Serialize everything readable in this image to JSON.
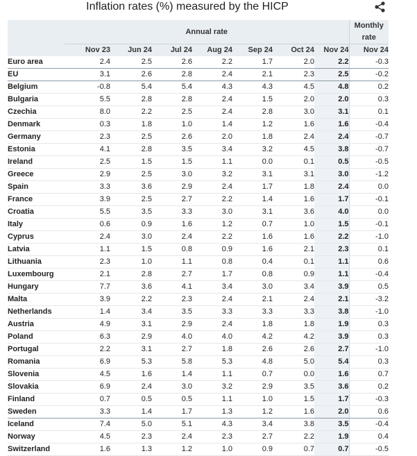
{
  "title": "Inflation rates (%) measured by the HICP",
  "share_icon": "share-icon",
  "group_headers": {
    "annual": "Annual rate",
    "monthly": "Monthly rate"
  },
  "columns": [
    "Nov 23",
    "Jun 24",
    "Jul 24",
    "Aug 24",
    "Sep 24",
    "Oct 24",
    "Nov 24",
    "Nov 24"
  ],
  "rows": [
    {
      "country": "Euro area",
      "values": [
        "2.4",
        "2.5",
        "2.6",
        "2.2",
        "1.7",
        "2.0",
        "2.2",
        "-0.3"
      ],
      "sep": true
    },
    {
      "country": "EU",
      "values": [
        "3.1",
        "2.6",
        "2.8",
        "2.4",
        "2.1",
        "2.3",
        "2.5",
        "-0.2"
      ],
      "sep": true
    },
    {
      "country": "Belgium",
      "values": [
        "-0.8",
        "5.4",
        "5.4",
        "4.3",
        "4.3",
        "4.5",
        "4.8",
        "0.2"
      ]
    },
    {
      "country": "Bulgaria",
      "values": [
        "5.5",
        "2.8",
        "2.8",
        "2.4",
        "1.5",
        "2.0",
        "2.0",
        "0.3"
      ]
    },
    {
      "country": "Czechia",
      "values": [
        "8.0",
        "2.2",
        "2.5",
        "2.4",
        "2.8",
        "3.0",
        "3.1",
        "0.1"
      ]
    },
    {
      "country": "Denmark",
      "values": [
        "0.3",
        "1.8",
        "1.0",
        "1.4",
        "1.2",
        "1.6",
        "1.6",
        "-0.4"
      ]
    },
    {
      "country": "Germany",
      "values": [
        "2.3",
        "2.5",
        "2.6",
        "2.0",
        "1.8",
        "2.4",
        "2.4",
        "-0.7"
      ]
    },
    {
      "country": "Estonia",
      "values": [
        "4.1",
        "2.8",
        "3.5",
        "3.4",
        "3.2",
        "4.5",
        "3.8",
        "-0.7"
      ]
    },
    {
      "country": "Ireland",
      "values": [
        "2.5",
        "1.5",
        "1.5",
        "1.1",
        "0.0",
        "0.1",
        "0.5",
        "-0.5"
      ]
    },
    {
      "country": "Greece",
      "values": [
        "2.9",
        "2.5",
        "3.0",
        "3.2",
        "3.1",
        "3.1",
        "3.0",
        "-1.2"
      ]
    },
    {
      "country": "Spain",
      "values": [
        "3.3",
        "3.6",
        "2.9",
        "2.4",
        "1.7",
        "1.8",
        "2.4",
        "0.0"
      ]
    },
    {
      "country": "France",
      "values": [
        "3.9",
        "2.5",
        "2.7",
        "2.2",
        "1.4",
        "1.6",
        "1.7",
        "-0.1"
      ]
    },
    {
      "country": "Croatia",
      "values": [
        "5.5",
        "3.5",
        "3.3",
        "3.0",
        "3.1",
        "3.6",
        "4.0",
        "0.0"
      ]
    },
    {
      "country": "Italy",
      "values": [
        "0.6",
        "0.9",
        "1.6",
        "1.2",
        "0.7",
        "1.0",
        "1.5",
        "-0.1"
      ]
    },
    {
      "country": "Cyprus",
      "values": [
        "2.4",
        "3.0",
        "2.4",
        "2.2",
        "1.6",
        "1.6",
        "2.2",
        "-1.0"
      ]
    },
    {
      "country": "Latvia",
      "values": [
        "1.1",
        "1.5",
        "0.8",
        "0.9",
        "1.6",
        "2.1",
        "2.3",
        "0.1"
      ]
    },
    {
      "country": "Lithuania",
      "values": [
        "2.3",
        "1.0",
        "1.1",
        "0.8",
        "0.4",
        "0.1",
        "1.1",
        "0.6"
      ]
    },
    {
      "country": "Luxembourg",
      "values": [
        "2.1",
        "2.8",
        "2.7",
        "1.7",
        "0.8",
        "0.9",
        "1.1",
        "-0.4"
      ]
    },
    {
      "country": "Hungary",
      "values": [
        "7.7",
        "3.6",
        "4.1",
        "3.4",
        "3.0",
        "3.4",
        "3.9",
        "0.5"
      ]
    },
    {
      "country": "Malta",
      "values": [
        "3.9",
        "2.2",
        "2.3",
        "2.4",
        "2.1",
        "2.4",
        "2.1",
        "-3.2"
      ]
    },
    {
      "country": "Netherlands",
      "values": [
        "1.4",
        "3.4",
        "3.5",
        "3.3",
        "3.3",
        "3.3",
        "3.8",
        "-1.0"
      ]
    },
    {
      "country": "Austria",
      "values": [
        "4.9",
        "3.1",
        "2.9",
        "2.4",
        "1.8",
        "1.8",
        "1.9",
        "0.3"
      ]
    },
    {
      "country": "Poland",
      "values": [
        "6.3",
        "2.9",
        "4.0",
        "4.0",
        "4.2",
        "4.2",
        "3.9",
        "0.3"
      ]
    },
    {
      "country": "Portugal",
      "values": [
        "2.2",
        "3.1",
        "2.7",
        "1.8",
        "2.6",
        "2.6",
        "2.7",
        "-1.0"
      ]
    },
    {
      "country": "Romania",
      "values": [
        "6.9",
        "5.3",
        "5.8",
        "5.3",
        "4.8",
        "5.0",
        "5.4",
        "0.3"
      ]
    },
    {
      "country": "Slovenia",
      "values": [
        "4.5",
        "1.6",
        "1.4",
        "1.1",
        "0.7",
        "0.0",
        "1.6",
        "0.7"
      ]
    },
    {
      "country": "Slovakia",
      "values": [
        "6.9",
        "2.4",
        "3.0",
        "3.2",
        "2.9",
        "3.5",
        "3.6",
        "0.2"
      ]
    },
    {
      "country": "Finland",
      "values": [
        "0.7",
        "0.5",
        "0.5",
        "1.1",
        "1.0",
        "1.5",
        "1.7",
        "-0.3"
      ]
    },
    {
      "country": "Sweden",
      "values": [
        "3.3",
        "1.4",
        "1.7",
        "1.3",
        "1.2",
        "1.6",
        "2.0",
        "0.6"
      ],
      "sep": true
    },
    {
      "country": "Iceland",
      "values": [
        "7.4",
        "5.0",
        "5.1",
        "4.3",
        "3.4",
        "3.8",
        "3.5",
        "-0.4"
      ]
    },
    {
      "country": "Norway",
      "values": [
        "4.5",
        "2.3",
        "2.4",
        "2.3",
        "2.7",
        "2.2",
        "1.9",
        "0.4"
      ]
    },
    {
      "country": "Switzerland",
      "values": [
        "1.6",
        "1.3",
        "1.2",
        "1.0",
        "0.9",
        "0.7",
        "0.7",
        "-0.5"
      ]
    }
  ]
}
